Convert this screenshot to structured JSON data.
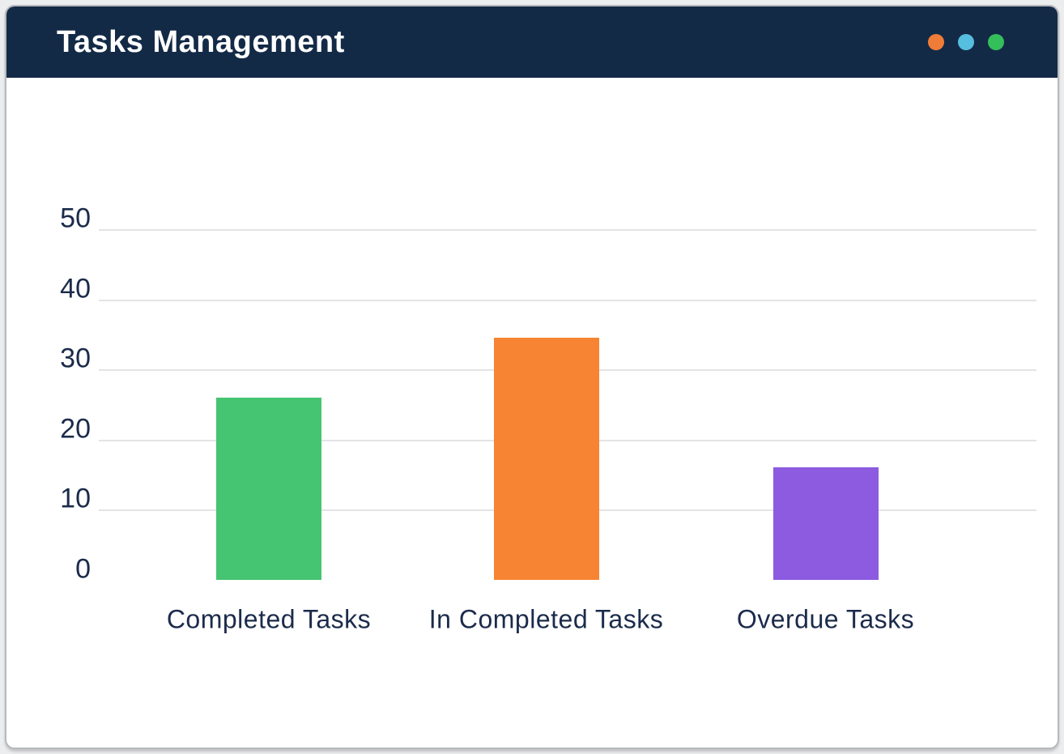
{
  "window": {
    "title": "Tasks Management",
    "controls": [
      {
        "name": "orange",
        "color": "#EF7D37"
      },
      {
        "name": "blue",
        "color": "#56BEDE"
      },
      {
        "name": "green",
        "color": "#35BF5B"
      }
    ]
  },
  "colors": {
    "page_bg": "#ECEDEF",
    "card_bg": "#FFFFFF",
    "card_border": "#B7B9BD",
    "header_bg": "#132A47",
    "title_text": "#FFFFFF",
    "axis_text": "#1B2B4B",
    "gridline": "#E4E4E7"
  },
  "chart_data": {
    "type": "bar",
    "title": "Tasks Management",
    "categories": [
      "Completed Tasks",
      "In Completed Tasks",
      "Overdue Tasks"
    ],
    "values": [
      26,
      34.5,
      16
    ],
    "bar_colors": [
      "#45C471",
      "#F78433",
      "#8C5BE0"
    ],
    "xlabel": "",
    "ylabel": "",
    "ylim": [
      0,
      50
    ],
    "yticks": [
      0,
      10,
      20,
      30,
      40,
      50
    ],
    "grid": "horizontal gridlines only, no zero baseline",
    "legend": "none"
  }
}
